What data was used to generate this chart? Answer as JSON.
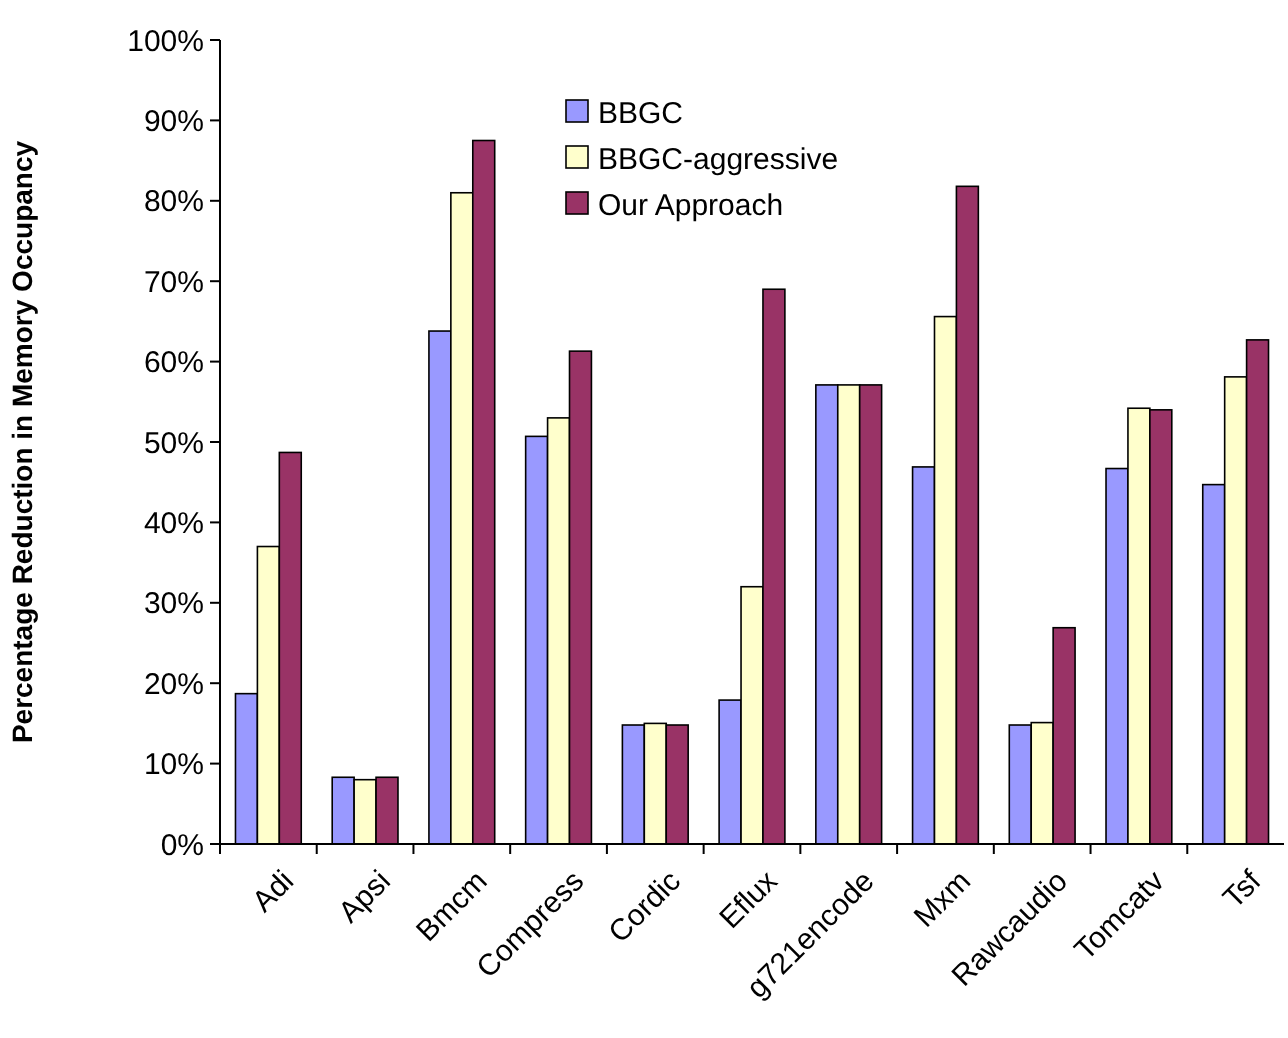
{
  "chart_data": {
    "type": "bar",
    "ylabel": "Percentage Reduction in Memory Occupancy",
    "categories": [
      "Adi",
      "Apsi",
      "Bmcm",
      "Compress",
      "Cordic",
      "Eflux",
      "g721encode",
      "Mxm",
      "Rawcaudio",
      "Tomcatv",
      "Tsf"
    ],
    "series": [
      {
        "name": "BBGC",
        "color": "#9999ff",
        "values": [
          18.7,
          8.3,
          63.8,
          50.7,
          14.8,
          17.9,
          57.1,
          46.9,
          14.8,
          46.7,
          44.7
        ]
      },
      {
        "name": "BBGC-aggressive",
        "color": "#ffffcc",
        "values": [
          37,
          8,
          81,
          53,
          15,
          32,
          57.1,
          65.6,
          15.1,
          54.2,
          58.1
        ]
      },
      {
        "name": "Our Approach",
        "color": "#993366",
        "values": [
          48.7,
          8.3,
          87.5,
          61.3,
          14.8,
          69,
          57.1,
          81.8,
          26.9,
          54,
          62.7
        ]
      }
    ],
    "ylim": [
      0,
      100
    ],
    "yticks": [
      {
        "value": 0,
        "label": "0%"
      },
      {
        "value": 10,
        "label": "10%"
      },
      {
        "value": 20,
        "label": "20%"
      },
      {
        "value": 30,
        "label": "30%"
      },
      {
        "value": 40,
        "label": "40%"
      },
      {
        "value": 50,
        "label": "50%"
      },
      {
        "value": 60,
        "label": "60%"
      },
      {
        "value": 70,
        "label": "70%"
      },
      {
        "value": 80,
        "label": "80%"
      },
      {
        "value": 90,
        "label": "90%"
      },
      {
        "value": 100,
        "label": "100%"
      }
    ],
    "legend": "top"
  }
}
